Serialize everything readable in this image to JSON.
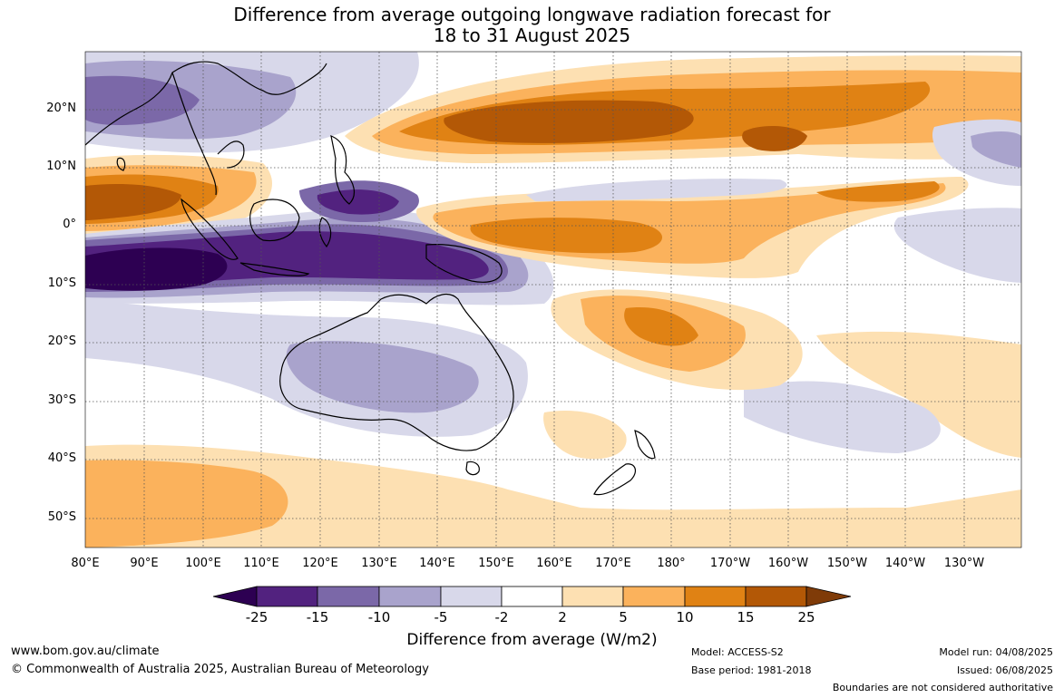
{
  "title": {
    "line1": "Difference from average outgoing longwave radiation forecast for",
    "line2": "18 to 31 August 2025"
  },
  "axes": {
    "lat_labels": [
      "20°N",
      "10°N",
      "0°",
      "10°S",
      "20°S",
      "30°S",
      "40°S",
      "50°S"
    ],
    "lon_labels": [
      "80°E",
      "90°E",
      "100°E",
      "110°E",
      "120°E",
      "130°E",
      "140°E",
      "150°E",
      "160°E",
      "170°E",
      "180°",
      "170°W",
      "160°W",
      "150°W",
      "140°W",
      "130°W"
    ]
  },
  "colorbar": {
    "ticks": [
      "-25",
      "-15",
      "-10",
      "-5",
      "-2",
      "2",
      "5",
      "10",
      "15",
      "25"
    ],
    "title": "Difference from average (W/m2)",
    "colors": {
      "under": "#2d0052",
      "bins": [
        "#52227f",
        "#7b68a8",
        "#a9a3cc",
        "#d8d8ea",
        "#ffffff",
        "#fde0b2",
        "#fbb25c",
        "#e08214",
        "#b35806"
      ],
      "over": "#7f3b08"
    }
  },
  "footer": {
    "url": "www.bom.gov.au/climate",
    "copyright": "© Commonwealth of Australia 2025, Australian Bureau of Meteorology",
    "model": "Model: ACCESS-S2",
    "base_period": "Base period: 1981-2018",
    "model_run": "Model run: 04/08/2025",
    "issued": "Issued: 06/08/2025",
    "disclaimer": "Boundaries are not considered authoritative"
  }
}
